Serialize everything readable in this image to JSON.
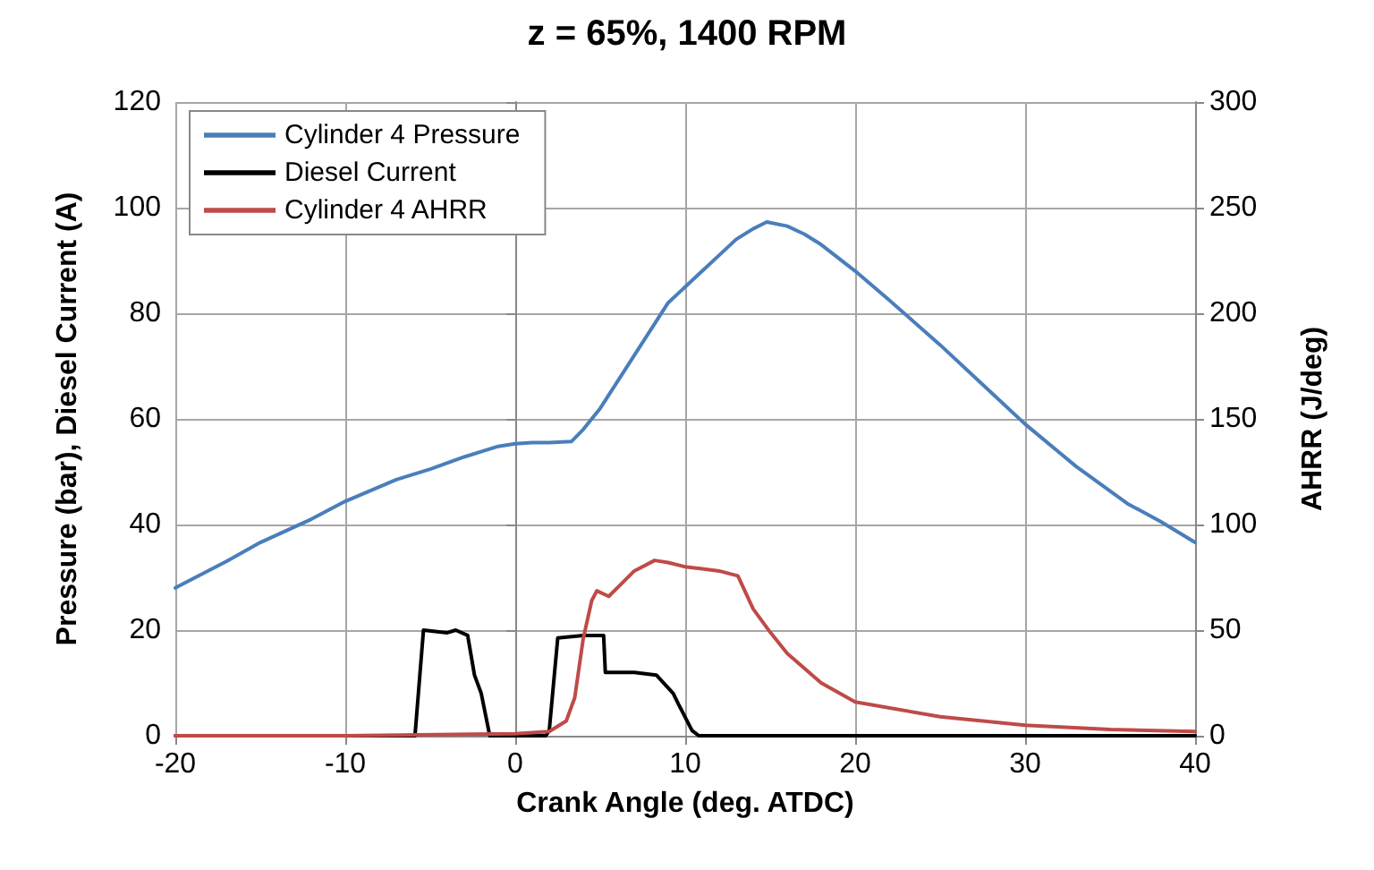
{
  "chart_data": {
    "type": "line",
    "title": "z = 65%, 1400 RPM",
    "xlabel": "Crank Angle (deg. ATDC)",
    "ylabel": "Pressure (bar), Diesel Current (A)",
    "y2label": "AHRR (J/deg)",
    "xlim": [
      -20,
      40
    ],
    "xticks": [
      -20,
      -10,
      0,
      10,
      20,
      30,
      40
    ],
    "ylim": [
      0,
      120
    ],
    "yticks": [
      0,
      20,
      40,
      60,
      80,
      100,
      120
    ],
    "y2lim": [
      0,
      300
    ],
    "y2ticks": [
      0,
      50,
      100,
      150,
      200,
      250,
      300
    ],
    "grid": true,
    "legend": "top left",
    "marker": "none",
    "line_style": "solid",
    "series": [
      {
        "name": "Cylinder 4 Pressure",
        "color": "#4a7ebb",
        "x": [
          -20,
          -17,
          -15,
          -12,
          -10,
          -7,
          -5,
          -3,
          -1,
          0,
          1,
          2,
          3.3,
          4,
          5,
          6,
          7,
          8,
          9,
          10,
          11,
          12,
          13,
          14,
          14.8,
          16,
          17,
          18,
          20,
          22,
          25,
          28,
          30,
          33,
          36,
          38,
          40
        ],
        "values": [
          28,
          33,
          36.6,
          41,
          44.4,
          48.5,
          50.5,
          52.8,
          54.8,
          55.3,
          55.5,
          55.5,
          55.7,
          58,
          62,
          67,
          72,
          77,
          82,
          85,
          88,
          91,
          94,
          96,
          97.3,
          96.5,
          95,
          93,
          88,
          82.5,
          74,
          65,
          59,
          51,
          44,
          40.5,
          36.6
        ]
      },
      {
        "name": "Diesel Current",
        "color": "#000000",
        "x": [
          -20,
          -5.9,
          -5.4,
          -4,
          -3.5,
          -2.8,
          -2.4,
          -2,
          -1.5,
          0,
          1.8,
          2,
          2.5,
          4,
          5.2,
          5.3,
          7,
          8.3,
          9.3,
          9.6,
          10.4,
          10.8,
          20,
          30,
          40
        ],
        "values": [
          0,
          0,
          20,
          19.5,
          20,
          19,
          11.5,
          8,
          0,
          0,
          0,
          1,
          18.5,
          19,
          19,
          12,
          12,
          11.5,
          8,
          6,
          1,
          0,
          0,
          0,
          0
        ]
      },
      {
        "name": "Cylinder 4 AHRR",
        "color": "#be4b48",
        "axis": "y2",
        "x": [
          -20,
          -10,
          0,
          2,
          3,
          3.5,
          4,
          4.5,
          4.8,
          5.5,
          6,
          7,
          8.2,
          9,
          10,
          11,
          12,
          13.1,
          14,
          15,
          16,
          18,
          20,
          25,
          30,
          35,
          40
        ],
        "values": [
          0,
          0,
          1,
          2,
          7,
          18,
          46,
          64,
          68.6,
          66,
          70,
          78,
          83,
          82,
          80,
          79,
          78,
          75.7,
          60,
          49,
          39,
          25,
          16,
          9,
          5,
          3,
          2
        ]
      }
    ]
  }
}
